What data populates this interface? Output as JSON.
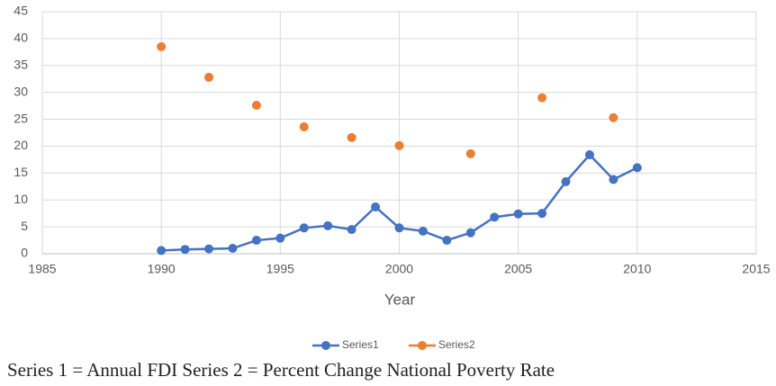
{
  "chart_data": {
    "type": "line",
    "x_label": "Year",
    "note": "Series 1 = Annual FDI   Series 2 = Percent Change National Poverty Rate",
    "series": [
      {
        "name": "Series1",
        "color": "#4472c4",
        "line": true,
        "x": [
          1990,
          1991,
          1992,
          1993,
          1994,
          1995,
          1996,
          1997,
          1998,
          1999,
          2000,
          2001,
          2002,
          2003,
          2004,
          2005,
          2006,
          2007,
          2008,
          2009,
          2010
        ],
        "values": [
          0.6,
          0.8,
          0.9,
          1.0,
          2.5,
          2.9,
          4.8,
          5.2,
          4.5,
          8.7,
          4.8,
          4.2,
          2.5,
          3.9,
          6.8,
          7.4,
          7.5,
          13.4,
          18.4,
          13.8,
          16.0
        ]
      },
      {
        "name": "Series2",
        "color": "#ed7d31",
        "line": false,
        "x": [
          1990,
          1992,
          1994,
          1996,
          1998,
          2000,
          2003,
          2006,
          2009
        ],
        "values": [
          38.5,
          32.8,
          27.6,
          23.6,
          21.6,
          20.1,
          18.6,
          29.0,
          25.3
        ]
      }
    ],
    "xlim": [
      1985,
      2015
    ],
    "xticks": [
      1985,
      1990,
      1995,
      2000,
      2005,
      2010,
      2015
    ],
    "ylim": [
      0,
      45
    ],
    "yticks": [
      0,
      5,
      10,
      15,
      20,
      25,
      30,
      35,
      40,
      45
    ],
    "grid": true,
    "legend": "bottom"
  }
}
